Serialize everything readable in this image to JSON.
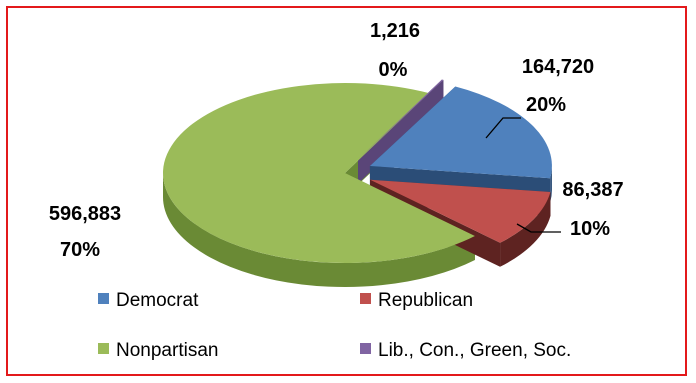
{
  "chart_data": {
    "type": "pie",
    "title": "",
    "slices": [
      {
        "name": "Democrat",
        "value": 164720,
        "value_label": "164,720",
        "percent_label": "20%",
        "color": "#4f81bd",
        "dark": "#2b4d77"
      },
      {
        "name": "Republican",
        "value": 86387,
        "value_label": "86,387",
        "percent_label": "10%",
        "color": "#c0504d",
        "dark": "#5e2321"
      },
      {
        "name": "Nonpartisan",
        "value": 596883,
        "value_label": "596,883",
        "percent_label": "70%",
        "color": "#9bbb59",
        "dark": "#6a8a35"
      },
      {
        "name": "Lib., Con., Green, Soc.",
        "value": 1216,
        "value_label": "1,216",
        "percent_label": "0%",
        "color": "#8064a2",
        "dark": "#5a4578"
      }
    ],
    "legend": {
      "position": "bottom",
      "items": [
        "Democrat",
        "Republican",
        "Nonpartisan",
        "Lib., Con., Green, Soc."
      ]
    },
    "style": "3d-exploded",
    "border_color": "#e3191b"
  }
}
